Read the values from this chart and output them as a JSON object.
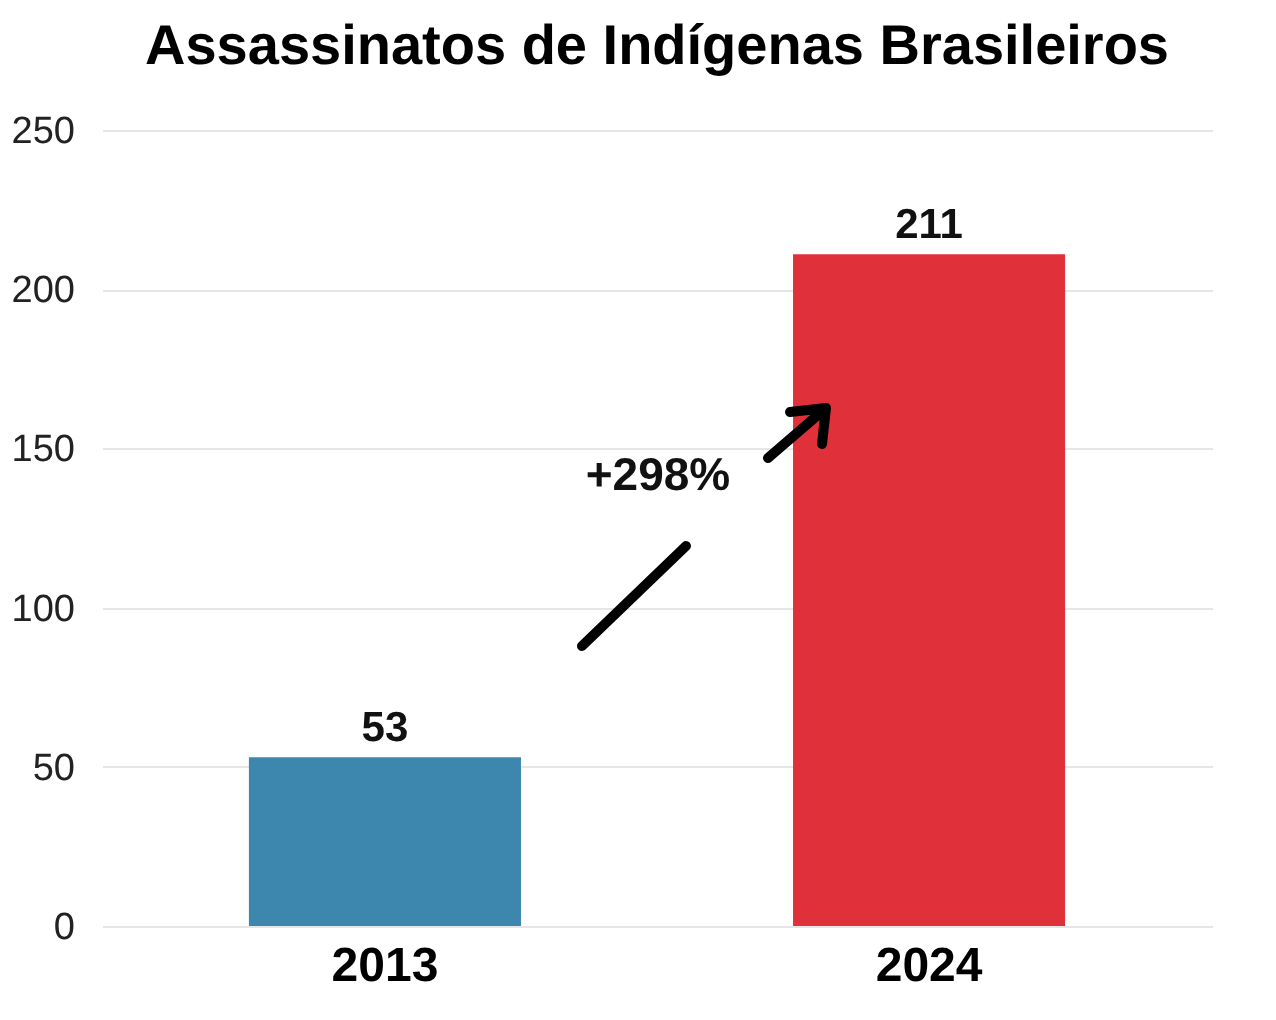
{
  "chart_data": {
    "type": "bar",
    "title": "Assassinatos de Indígenas Brasileiros",
    "categories": [
      "2013",
      "2024"
    ],
    "values": [
      53,
      211
    ],
    "colors": [
      "#3d86ae",
      "#e0313a"
    ],
    "ylim": [
      0,
      250
    ],
    "yticks": [
      0,
      50,
      100,
      150,
      200,
      250
    ],
    "grid": "y",
    "data_labels": true,
    "annotations": [
      "+298%"
    ]
  }
}
